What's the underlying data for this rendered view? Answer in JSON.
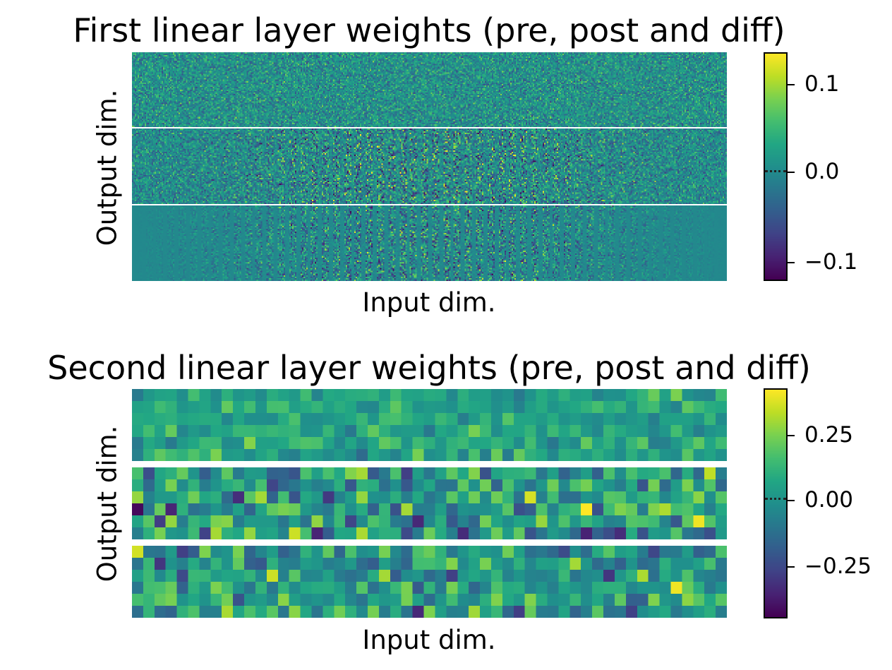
{
  "chart_data": [
    {
      "type": "heatmap",
      "title": "First linear layer weights (pre, post and diff)",
      "xlabel": "Input dim.",
      "ylabel": "Output dim.",
      "panels": [
        "pre",
        "post",
        "diff"
      ],
      "x_ticks": "none",
      "y_ticks": "none",
      "colormap": "viridis",
      "colorbar": {
        "vmin": -0.12,
        "vmax": 0.14,
        "ticks": [
          0.1,
          0.0,
          -0.1
        ],
        "tick_labels": [
          "0.1",
          "0.0",
          "−0.1"
        ],
        "center_marker": 0.0
      },
      "layout": "three stacked heatmaps separated by thin white lines"
    },
    {
      "type": "heatmap",
      "title": "Second linear layer weights (pre, post and diff)",
      "xlabel": "Input dim.",
      "ylabel": "Output dim.",
      "panels": [
        "pre",
        "post",
        "diff"
      ],
      "x_ticks": "none",
      "y_ticks": "none",
      "colormap": "viridis",
      "colorbar": {
        "vmin": -0.45,
        "vmax": 0.42,
        "ticks": [
          0.25,
          0.0,
          -0.25
        ],
        "tick_labels": [
          "0.25",
          "0.00",
          "−0.25"
        ],
        "center_marker": 0.0
      },
      "layout": "three stacked heatmaps separated by white gaps"
    }
  ]
}
